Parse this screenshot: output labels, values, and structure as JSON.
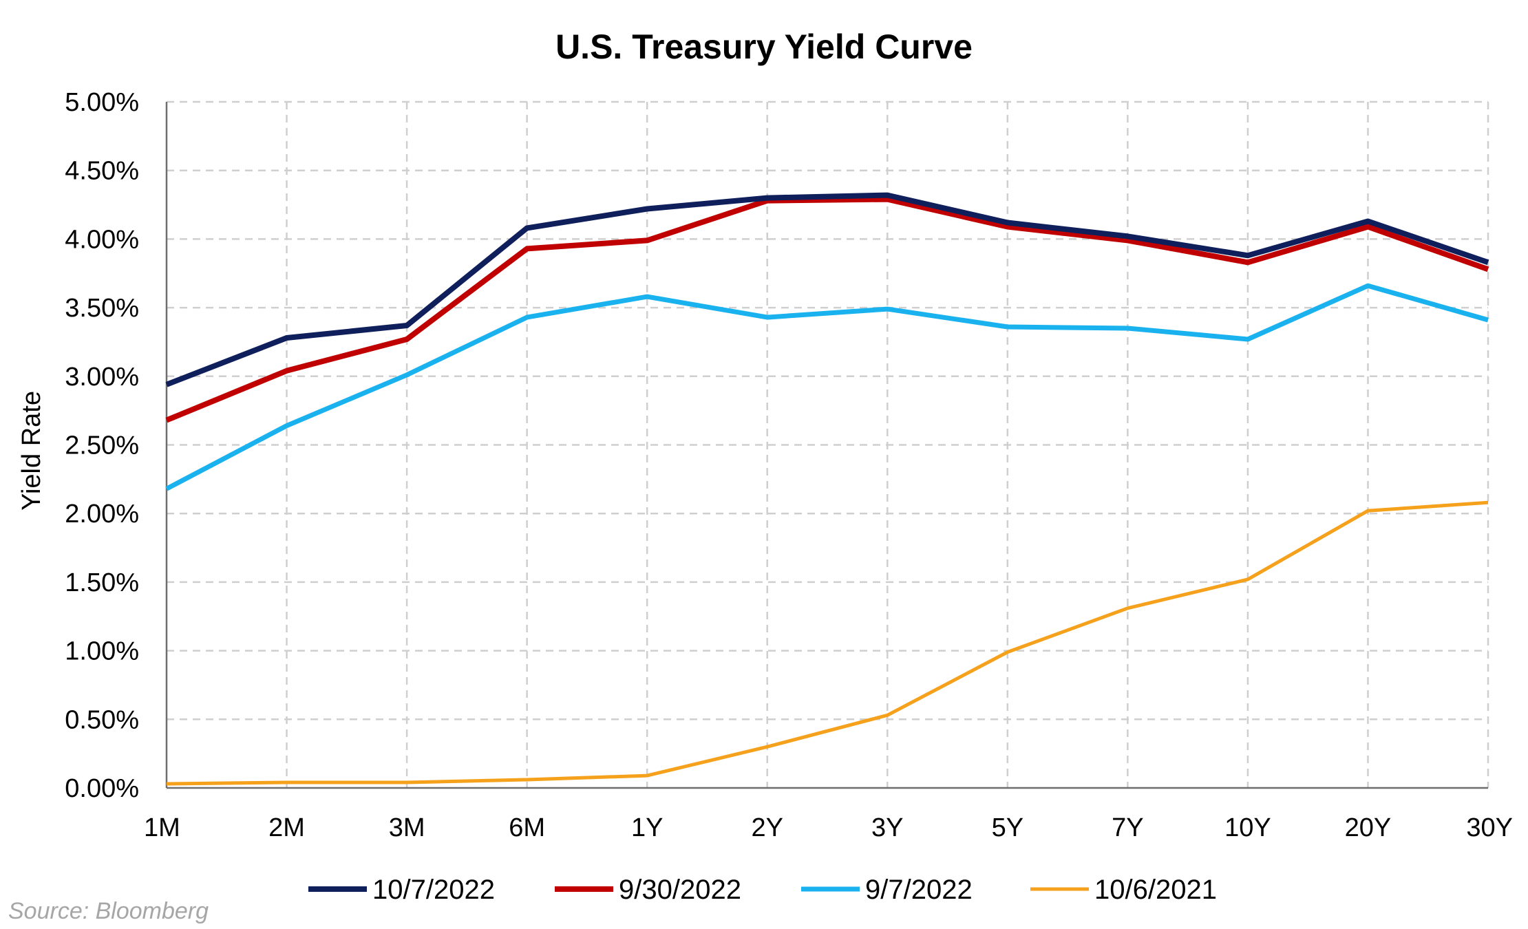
{
  "chart_data": {
    "type": "line",
    "title": "U.S. Treasury Yield Curve",
    "ylabel": "Yield Rate",
    "xlabel": "",
    "categories": [
      "1M",
      "2M",
      "3M",
      "6M",
      "1Y",
      "2Y",
      "3Y",
      "5Y",
      "7Y",
      "10Y",
      "20Y",
      "30Y"
    ],
    "ylim": [
      0,
      5
    ],
    "yticks": [
      0,
      0.5,
      1,
      1.5,
      2,
      2.5,
      3,
      3.5,
      4,
      4.5,
      5
    ],
    "ytick_labels": [
      "0.00%",
      "0.50%",
      "1.00%",
      "1.50%",
      "2.00%",
      "2.50%",
      "3.00%",
      "3.50%",
      "4.00%",
      "4.50%",
      "5.00%"
    ],
    "grid": true,
    "legend_position": "bottom",
    "series": [
      {
        "name": "10/7/2022",
        "color": "#0f1f5c",
        "values": [
          2.94,
          3.28,
          3.37,
          4.08,
          4.22,
          4.3,
          4.32,
          4.12,
          4.02,
          3.88,
          4.13,
          3.83
        ]
      },
      {
        "name": "9/30/2022",
        "color": "#c00000",
        "values": [
          2.68,
          3.04,
          3.27,
          3.93,
          3.99,
          4.28,
          4.29,
          4.09,
          3.99,
          3.83,
          4.09,
          3.78
        ]
      },
      {
        "name": "9/7/2022",
        "color": "#1ab2ee",
        "values": [
          2.18,
          2.64,
          3.01,
          3.43,
          3.58,
          3.43,
          3.49,
          3.36,
          3.35,
          3.27,
          3.66,
          3.41
        ]
      },
      {
        "name": "10/6/2021",
        "color": "#f5a11c",
        "values": [
          0.03,
          0.04,
          0.04,
          0.06,
          0.09,
          0.3,
          0.53,
          0.99,
          1.31,
          1.52,
          2.02,
          2.08
        ]
      }
    ]
  },
  "source": "Source: Bloomberg"
}
